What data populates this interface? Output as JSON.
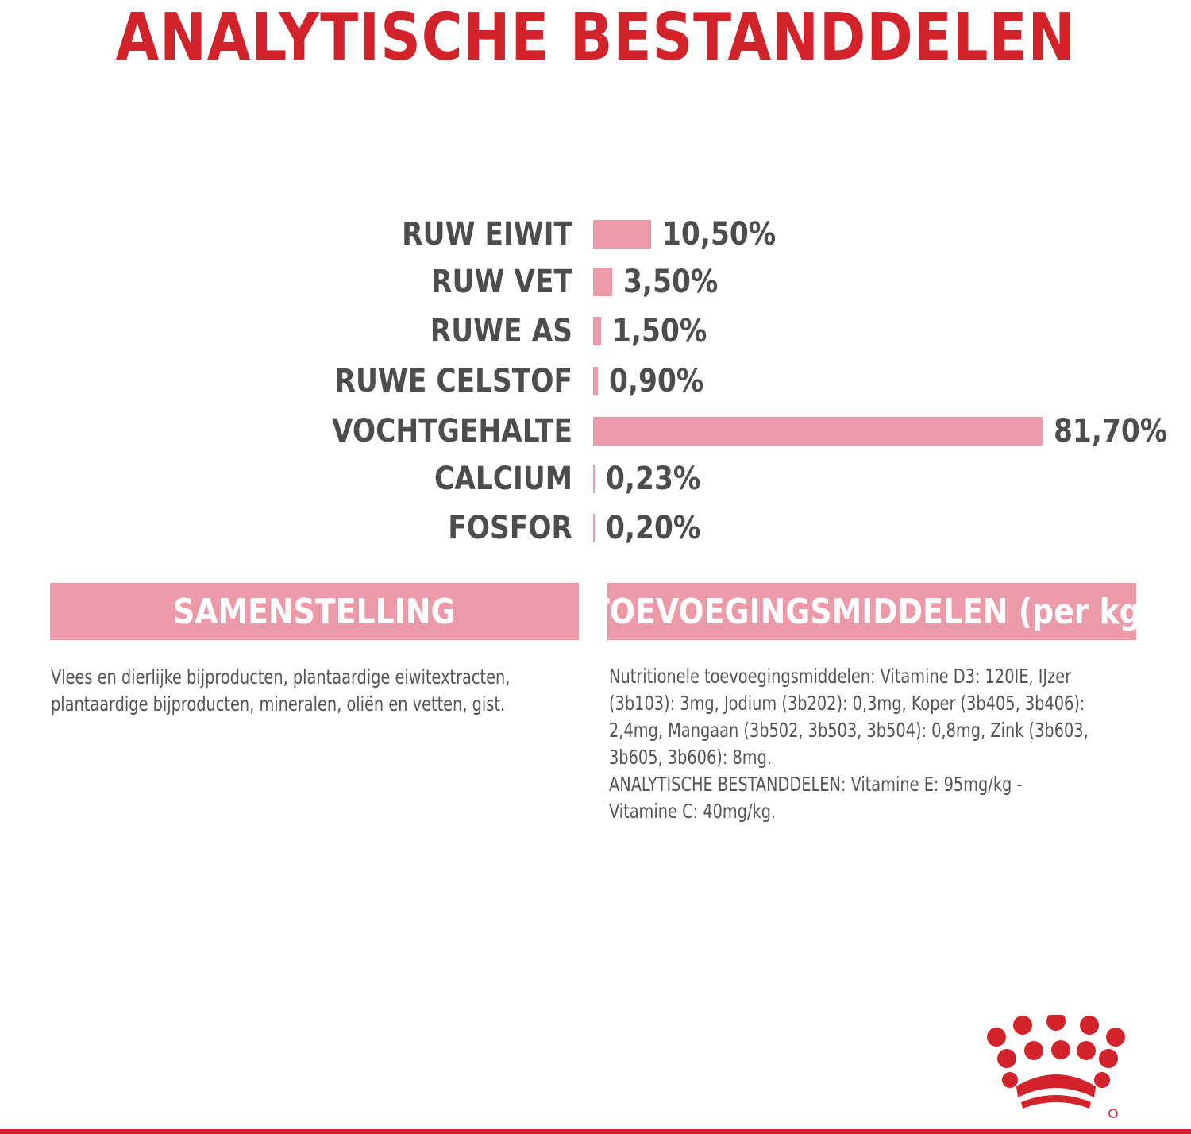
{
  "title": "ANALYTISCHE BESTANDDELEN",
  "colors": {
    "title_red": "#d2232a",
    "bar_pink": "#ec9aa8",
    "label_gray": "#4d4d4d",
    "header_pink": "#ec9aa8",
    "text_gray": "#555555"
  },
  "chart_data": {
    "type": "bar",
    "orientation": "horizontal",
    "categories": [
      "RUW EIWIT",
      "RUW VET",
      "RUWE AS",
      "RUWE CELSTOF",
      "VOCHTGEHALTE",
      "CALCIUM",
      "FOSFOR"
    ],
    "values": [
      10.5,
      3.5,
      1.5,
      0.9,
      81.7,
      0.23,
      0.2
    ],
    "value_labels": [
      "10,50%",
      "3,50%",
      "1,50%",
      "0,90%",
      "81,70%",
      "0,23%",
      "0,20%"
    ],
    "unit": "%"
  },
  "samenstelling": {
    "heading": "SAMENSTELLING",
    "lines": [
      "Vlees en dierlijke bijproducten, plantaardige eiwitextracten,",
      "plantaardige bijproducten, mineralen, oliën en vetten, gist."
    ]
  },
  "toevoegingsmiddelen": {
    "heading": "TOEVOEGINGSMIDDELEN (per kg)",
    "lines": [
      "Nutritionele toevoegingsmiddelen: Vitamine D3: 120IE, IJzer",
      "(3b103): 3mg, Jodium (3b202): 0,3mg, Koper (3b405, 3b406):",
      "2,4mg, Mangaan (3b502, 3b503, 3b504): 0,8mg, Zink (3b603,",
      "3b605, 3b606): 8mg.",
      "ANALYTISCHE BESTANDDELEN: Vitamine E: 95mg/kg -",
      "Vitamine C: 40mg/kg."
    ]
  },
  "logo": {
    "icon": "crown-logo-icon"
  }
}
